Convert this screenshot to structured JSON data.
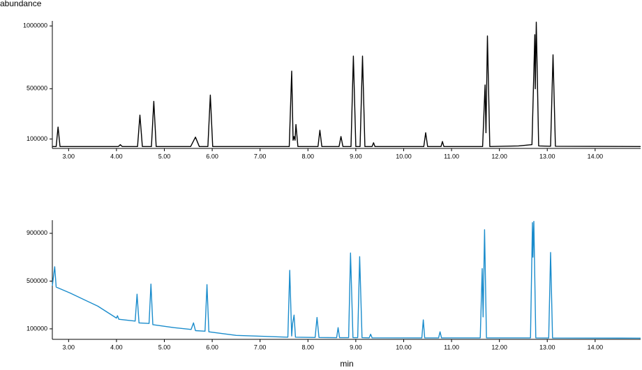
{
  "chart_data": [
    {
      "type": "line",
      "ylabel": "abundance",
      "color": "#000000",
      "xlim": [
        2.66,
        14.95
      ],
      "ylim": [
        25000,
        1040000
      ],
      "xticks": [
        {
          "value": 3,
          "label": "3.00"
        },
        {
          "value": 4,
          "label": "4.00"
        },
        {
          "value": 5,
          "label": "5.00"
        },
        {
          "value": 6,
          "label": "6.00"
        },
        {
          "value": 7,
          "label": "7.00"
        },
        {
          "value": 8,
          "label": "8.00"
        },
        {
          "value": 9,
          "label": "9.00"
        },
        {
          "value": 10,
          "label": "10.00"
        },
        {
          "value": 11,
          "label": "11.00"
        },
        {
          "value": 12,
          "label": "12.00"
        },
        {
          "value": 13,
          "label": "13.00"
        },
        {
          "value": 14,
          "label": "14.00"
        }
      ],
      "yticks": [
        100000,
        500000,
        1000000
      ],
      "x": [
        2.66,
        2.74,
        2.78,
        2.82,
        4.04,
        4.08,
        4.12,
        4.44,
        4.49,
        4.54,
        4.73,
        4.78,
        4.83,
        5.55,
        5.65,
        5.73,
        5.91,
        5.96,
        6.01,
        7.61,
        7.66,
        7.69,
        7.71,
        7.73,
        7.75,
        7.79,
        8.21,
        8.25,
        8.29,
        8.65,
        8.69,
        8.73,
        8.9,
        8.95,
        9.0,
        9.09,
        9.14,
        9.19,
        9.34,
        9.37,
        9.4,
        10.42,
        10.46,
        10.5,
        10.78,
        10.81,
        10.84,
        11.65,
        11.7,
        11.72,
        11.75,
        11.8,
        12.4,
        12.68,
        12.74,
        12.75,
        12.77,
        12.82,
        13.07,
        13.12,
        13.17,
        14.95
      ],
      "values": [
        40000,
        40000,
        195000,
        40000,
        40000,
        55000,
        40000,
        40000,
        290000,
        40000,
        40000,
        400000,
        40000,
        40000,
        115000,
        40000,
        40000,
        450000,
        40000,
        40000,
        640000,
        90000,
        120000,
        90000,
        215000,
        40000,
        40000,
        170000,
        40000,
        40000,
        120000,
        40000,
        40000,
        760000,
        40000,
        40000,
        760000,
        40000,
        40000,
        70000,
        40000,
        40000,
        150000,
        40000,
        40000,
        80000,
        40000,
        40000,
        530000,
        150000,
        920000,
        40000,
        45000,
        55000,
        930000,
        500000,
        1030000,
        45000,
        42000,
        770000,
        42000,
        40000
      ]
    },
    {
      "type": "line",
      "xlabel": "min",
      "color": "#1a8ccc",
      "xlim": [
        2.66,
        14.95
      ],
      "ylim": [
        12000,
        1010000
      ],
      "xticks": [
        {
          "value": 3,
          "label": "3.00"
        },
        {
          "value": 4,
          "label": "4.00"
        },
        {
          "value": 5,
          "label": "5.00"
        },
        {
          "value": 6,
          "label": "6.00"
        },
        {
          "value": 7,
          "label": "7.00"
        },
        {
          "value": 8,
          "label": "8.00"
        },
        {
          "value": 9,
          "label": "9.00"
        },
        {
          "value": 10,
          "label": "10.00"
        },
        {
          "value": 11,
          "label": "11.00"
        },
        {
          "value": 12,
          "label": "12.00"
        },
        {
          "value": 13,
          "label": "13.00"
        },
        {
          "value": 14,
          "label": "14.00"
        }
      ],
      "yticks": [
        100000,
        500000,
        900000
      ],
      "x": [
        2.66,
        2.69,
        2.71,
        2.74,
        3.03,
        3.61,
        4.0,
        4.02,
        4.05,
        4.39,
        4.43,
        4.47,
        4.68,
        4.72,
        4.76,
        5.2,
        5.56,
        5.61,
        5.65,
        5.85,
        5.89,
        5.93,
        6.5,
        7.58,
        7.62,
        7.66,
        7.68,
        7.71,
        7.74,
        8.15,
        8.19,
        8.23,
        8.6,
        8.63,
        8.66,
        8.85,
        8.89,
        8.94,
        9.04,
        9.08,
        9.13,
        9.28,
        9.31,
        9.34,
        10.38,
        10.41,
        10.44,
        10.73,
        10.76,
        10.79,
        11.6,
        11.64,
        11.66,
        11.69,
        11.73,
        12.65,
        12.69,
        12.7,
        12.72,
        12.76,
        13.03,
        13.07,
        13.11,
        14.95
      ],
      "values": [
        460000,
        560000,
        620000,
        450000,
        400000,
        290000,
        190000,
        210000,
        180000,
        165000,
        390000,
        150000,
        145000,
        475000,
        135000,
        110000,
        95000,
        150000,
        85000,
        80000,
        470000,
        75000,
        45000,
        30000,
        590000,
        40000,
        145000,
        215000,
        30000,
        28000,
        195000,
        28000,
        26000,
        110000,
        26000,
        26000,
        735000,
        26000,
        26000,
        705000,
        26000,
        25000,
        55000,
        25000,
        24000,
        175000,
        24000,
        24000,
        75000,
        24000,
        24000,
        605000,
        200000,
        930000,
        24000,
        24000,
        990000,
        700000,
        1000000,
        24000,
        23000,
        740000,
        23000,
        22000
      ]
    }
  ]
}
